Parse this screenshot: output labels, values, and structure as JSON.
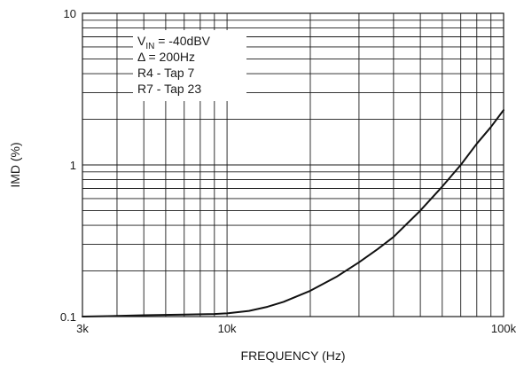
{
  "chart_data": {
    "type": "line",
    "title": "",
    "xlabel": "FREQUENCY (Hz)",
    "ylabel": "IMD (%)",
    "xscale": "log",
    "yscale": "log",
    "xlim": [
      3000,
      100000
    ],
    "ylim": [
      0.1,
      10
    ],
    "grid": true,
    "x_ticks": [
      {
        "value": 3000,
        "label": "3k"
      },
      {
        "value": 10000,
        "label": "10k"
      },
      {
        "value": 100000,
        "label": "100k"
      }
    ],
    "y_ticks": [
      {
        "value": 0.1,
        "label": "0.1"
      },
      {
        "value": 1,
        "label": "1"
      },
      {
        "value": 10,
        "label": "10"
      }
    ],
    "annotations": [
      {
        "parts": [
          {
            "t": "V"
          },
          {
            "t": "IN",
            "sub": true
          },
          {
            "t": " = -40dBV"
          }
        ]
      },
      {
        "parts": [
          {
            "t": "Δ = 200Hz"
          }
        ]
      },
      {
        "parts": [
          {
            "t": "R4 - Tap 7"
          }
        ]
      },
      {
        "parts": [
          {
            "t": "R7 - Tap 23"
          }
        ]
      }
    ],
    "series": [
      {
        "x": [
          3000,
          4000,
          5000,
          7000,
          9000,
          10000,
          12000,
          14000,
          16000,
          20000,
          25000,
          30000,
          35000,
          40000,
          50000,
          60000,
          70000,
          80000,
          90000,
          100000
        ],
        "y": [
          0.1,
          0.101,
          0.102,
          0.103,
          0.104,
          0.105,
          0.109,
          0.116,
          0.125,
          0.148,
          0.184,
          0.228,
          0.278,
          0.335,
          0.5,
          0.72,
          1.0,
          1.38,
          1.78,
          2.3
        ]
      }
    ]
  }
}
